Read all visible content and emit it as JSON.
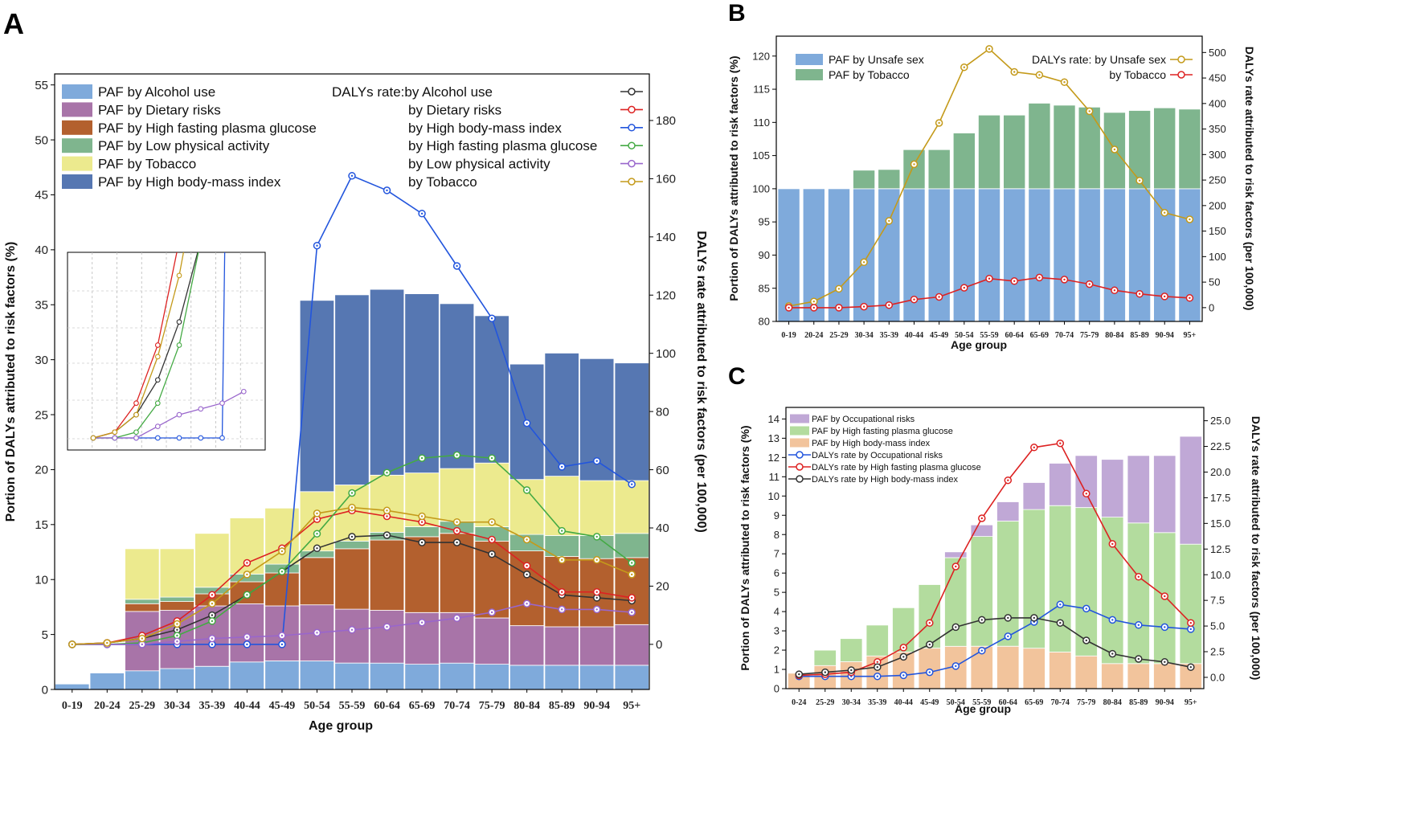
{
  "chart_data": [
    {
      "id": "A",
      "type": "bar",
      "panel_label": "A",
      "xlabel": "Age group",
      "ylabel": "Portion of DALYs attributed to risk factors (%)",
      "y2label": "DALYs rate attributed to risk factors (per 100,000)",
      "categories": [
        "0-19",
        "20-24",
        "25-29",
        "30-34",
        "35-39",
        "40-44",
        "45-49",
        "50-54",
        "55-59",
        "60-64",
        "65-69",
        "70-74",
        "75-79",
        "80-84",
        "85-89",
        "90-94",
        "95+"
      ],
      "ylim": [
        0,
        56
      ],
      "yticks": [
        0,
        5,
        10,
        15,
        20,
        25,
        30,
        35,
        40,
        45,
        50,
        55
      ],
      "y2lim": [
        -15.5,
        196
      ],
      "y2ticks": [
        0,
        20,
        40,
        60,
        80,
        100,
        120,
        140,
        160,
        180
      ],
      "bar_series": [
        {
          "name": "PAF by Alcohol use",
          "color": "#7faadb",
          "values": [
            0.5,
            1.5,
            1.7,
            1.9,
            2.1,
            2.5,
            2.6,
            2.6,
            2.4,
            2.4,
            2.3,
            2.4,
            2.3,
            2.2,
            2.2,
            2.2,
            2.2
          ]
        },
        {
          "name": "PAF by Dietary risks",
          "color": "#a874a8",
          "values": [
            0,
            0,
            5.4,
            5.3,
            5.5,
            5.3,
            5.0,
            5.1,
            4.9,
            4.8,
            4.7,
            4.6,
            4.2,
            3.6,
            3.5,
            3.5,
            3.7
          ]
        },
        {
          "name": "PAF by High fasting plasma glucose",
          "color": "#b3602e",
          "values": [
            0,
            0,
            0.7,
            0.8,
            1.1,
            2.0,
            3.0,
            4.3,
            5.5,
            6.4,
            6.9,
            7.2,
            7.0,
            6.8,
            6.4,
            6.2,
            6.1
          ]
        },
        {
          "name": "PAF by Low physical activity",
          "color": "#7fb58e",
          "values": [
            0,
            0,
            0.4,
            0.4,
            0.6,
            0.7,
            0.8,
            0.6,
            0.7,
            0.7,
            0.9,
            1.1,
            1.3,
            1.5,
            1.9,
            2.1,
            2.2
          ]
        },
        {
          "name": "PAF by Tobacco",
          "color": "#ecea8e",
          "values": [
            0,
            0,
            4.6,
            4.4,
            4.9,
            5.1,
            5.1,
            5.4,
            5.1,
            5.2,
            4.9,
            4.8,
            5.8,
            5.0,
            5.4,
            5.0,
            4.8
          ]
        },
        {
          "name": "PAF by High body-mass index",
          "color": "#5677b2",
          "values": [
            0,
            0,
            0,
            0,
            0,
            0,
            0,
            17.4,
            17.3,
            16.9,
            16.3,
            15.0,
            13.4,
            10.5,
            11.2,
            11.1,
            10.7
          ]
        }
      ],
      "line_series": [
        {
          "name": "by Alcohol use",
          "color": "#333333",
          "values": [
            0,
            0.5,
            2,
            5,
            10,
            17,
            25,
            33,
            37,
            37.5,
            35,
            35,
            31,
            24,
            17,
            16,
            15
          ]
        },
        {
          "name": "by Dietary risks",
          "color": "#dd2222",
          "values": [
            0,
            0.5,
            3,
            8,
            17,
            28,
            33,
            43,
            46,
            44,
            42,
            39,
            36,
            27,
            18,
            18,
            16
          ]
        },
        {
          "name": "by High body-mass index",
          "color": "#2255dd",
          "values": [
            0,
            0,
            0,
            0,
            0,
            0,
            0,
            137,
            161,
            156,
            148,
            130,
            112,
            76,
            61,
            63,
            55
          ]
        },
        {
          "name": "by High fasting plasma glucose",
          "color": "#44aa44",
          "values": [
            0,
            0,
            0.5,
            3,
            8,
            17,
            25,
            38,
            52,
            59,
            64,
            65,
            64,
            53,
            39,
            37,
            28
          ]
        },
        {
          "name": "by Low physical activity",
          "color": "#9966cc",
          "values": [
            0,
            0,
            0,
            1,
            2,
            2.5,
            3,
            4,
            5,
            6,
            7.5,
            9,
            11,
            14,
            12,
            12,
            11
          ]
        },
        {
          "name": "by Tobacco",
          "color": "#c49a1a",
          "values": [
            0,
            0.5,
            2,
            7,
            14,
            24,
            32,
            45,
            47,
            46,
            44,
            42,
            42,
            36,
            29,
            29,
            24
          ]
        }
      ],
      "legend_bar_entries": [
        "PAF by Alcohol use",
        "PAF by Dietary risks",
        "PAF by High fasting plasma glucose",
        "PAF by Low physical activity",
        "PAF by Tobacco",
        "PAF by High body-mass index"
      ],
      "legend_line_entries": [
        "DALYs rate:by Alcohol use",
        "by Dietary risks",
        "by High body-mass index",
        "by High fasting plasma glucose",
        "by Low physical activity",
        "by Tobacco"
      ]
    },
    {
      "id": "B",
      "type": "bar",
      "panel_label": "B",
      "xlabel": "Age group",
      "ylabel": "Portion of DALYs attributed to risk factors (%)",
      "y2label": "DALYs rate attributed to risk factors (per 100,000)",
      "categories": [
        "0-19",
        "20-24",
        "25-29",
        "30-34",
        "35-39",
        "40-44",
        "45-49",
        "50-54",
        "55-59",
        "60-64",
        "65-69",
        "70-74",
        "75-79",
        "80-84",
        "85-89",
        "90-94",
        "95+"
      ],
      "ylim": [
        80,
        123
      ],
      "yticks": [
        80,
        85,
        90,
        95,
        100,
        105,
        110,
        115,
        120
      ],
      "y2lim": [
        -27,
        532
      ],
      "y2ticks": [
        0,
        50,
        100,
        150,
        200,
        250,
        300,
        350,
        400,
        450,
        500
      ],
      "bar_series": [
        {
          "name": "PAF by Unsafe sex",
          "color": "#7faadb",
          "values": [
            20,
            20,
            20,
            20,
            20,
            20,
            20,
            20,
            20,
            20,
            20,
            20,
            20,
            20,
            20,
            20,
            20
          ]
        },
        {
          "name": "PAF by Tobacco",
          "color": "#7fb58e",
          "values": [
            0,
            0,
            0,
            2.8,
            2.9,
            5.9,
            5.9,
            8.4,
            11.1,
            11.1,
            12.9,
            12.6,
            12.3,
            11.5,
            11.8,
            12.2,
            12.0
          ]
        }
      ],
      "line_series": [
        {
          "name": "DALYs rate: by Unsafe sex",
          "color": "#c49a1a",
          "values": [
            3,
            12,
            37,
            89,
            170,
            281,
            362,
            471,
            507,
            462,
            456,
            442,
            385,
            310,
            249,
            186,
            173
          ]
        },
        {
          "name": "by Tobacco",
          "color": "#dd2222",
          "values": [
            0,
            0,
            0,
            2,
            5,
            16,
            21,
            39,
            57,
            52,
            59,
            55,
            46,
            34,
            27,
            22,
            19
          ]
        }
      ]
    },
    {
      "id": "C",
      "type": "bar",
      "panel_label": "C",
      "xlabel": "Age group",
      "ylabel": "Portion of DALYs attributed to risk factors (%)",
      "y2label": "DALYs rate attributed to risk factors (per 100,000)",
      "categories": [
        "0-24",
        "25-29",
        "30-34",
        "35-39",
        "40-44",
        "45-49",
        "50-54",
        "55-59",
        "60-64",
        "65-69",
        "70-74",
        "75-79",
        "80-84",
        "85-89",
        "90-94",
        "95+"
      ],
      "ylim": [
        0,
        14.6
      ],
      "yticks": [
        0,
        1,
        2,
        3,
        4,
        5,
        6,
        7,
        8,
        9,
        10,
        11,
        12,
        13,
        14
      ],
      "y2lim": [
        -1.1,
        26.3
      ],
      "y2ticks": [
        0.0,
        2.5,
        5.0,
        7.5,
        10.0,
        12.5,
        15.0,
        17.5,
        20.0,
        22.5,
        25.0
      ],
      "bar_series": [
        {
          "name": "PAF by High body-mass index",
          "color": "#f2c49c",
          "values": [
            0.8,
            1.2,
            1.4,
            1.7,
            1.9,
            2.1,
            2.2,
            2.2,
            2.2,
            2.1,
            1.9,
            1.7,
            1.3,
            1.3,
            1.3,
            1.3
          ]
        },
        {
          "name": "PAF by High fasting plasma glucose",
          "color": "#b3dc9e",
          "values": [
            0,
            0.8,
            1.2,
            1.6,
            2.3,
            3.3,
            4.6,
            5.7,
            6.5,
            7.2,
            7.6,
            7.7,
            7.6,
            7.3,
            6.8,
            6.2
          ]
        },
        {
          "name": "PAF by Occupational risks",
          "color": "#c0a8d6",
          "values": [
            0,
            0,
            0,
            0,
            0,
            0,
            0.3,
            0.6,
            1.0,
            1.4,
            2.2,
            2.7,
            3.0,
            3.5,
            4.0,
            5.6
          ]
        }
      ],
      "line_series": [
        {
          "name": "DALYs rate by Occupational risks",
          "color": "#2255dd",
          "values": [
            0.1,
            0.1,
            0.1,
            0.1,
            0.2,
            0.5,
            1.1,
            2.6,
            4.0,
            5.4,
            7.1,
            6.7,
            5.6,
            5.1,
            4.9,
            4.7
          ]
        },
        {
          "name": "DALYs rate by High fasting plasma glucose",
          "color": "#dd2222",
          "values": [
            0.2,
            0.3,
            0.5,
            1.5,
            2.9,
            5.3,
            10.8,
            15.5,
            19.2,
            22.4,
            22.8,
            17.9,
            13.0,
            9.8,
            7.9,
            5.3
          ]
        },
        {
          "name": "DALYs rate by High body-mass index",
          "color": "#333333",
          "values": [
            0.3,
            0.5,
            0.7,
            1.0,
            2.0,
            3.2,
            4.9,
            5.6,
            5.8,
            5.8,
            5.3,
            3.6,
            2.3,
            1.8,
            1.5,
            1.0
          ]
        }
      ],
      "legend_order": [
        "PAF by Occupational risks",
        "PAF by High fasting plasma glucose",
        "PAF by High body-mass index",
        "DALYs rate by Occupational risks",
        "DALYs rate by High fasting plasma glucose",
        "DALYs rate by High body-mass index"
      ]
    }
  ]
}
